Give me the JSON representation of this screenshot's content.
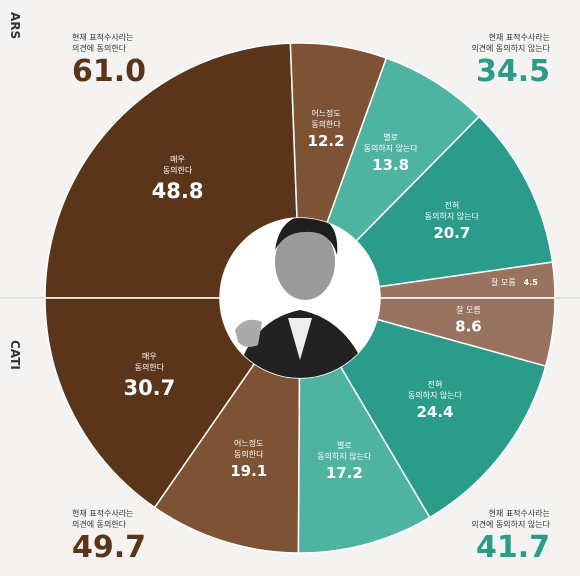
{
  "chart_data": [
    {
      "type": "donut",
      "title": "ARS",
      "half": "top",
      "categories": [
        "매우\n동의한다",
        "어느정도\n동의한다",
        "별로\n동의하지 않는다",
        "전혀\n동의하지 않는다",
        "잘 모름"
      ],
      "values": [
        48.8,
        12.2,
        13.8,
        20.7,
        4.5
      ],
      "colors": [
        "#5b3519",
        "#7e5234",
        "#4fb3a2",
        "#2b9c8a",
        "#9a7360"
      ],
      "summary": {
        "categories": [
          "현재 표적수사라는\n의견에 동의한다",
          "현재 표적수사라는\n의견에 동의하지 않는다"
        ],
        "values": [
          61.0,
          34.5
        ],
        "value_labels": [
          "61.0",
          "34.5"
        ],
        "colors": [
          "#5b3519",
          "#2b9c8a"
        ]
      }
    },
    {
      "type": "donut",
      "title": "CATI",
      "half": "bottom",
      "categories": [
        "매우\n동의한다",
        "어느정도\n동의한다",
        "별로\n동의하지 않는다",
        "전혀\n동의하지 않는다",
        "잘 모름"
      ],
      "values": [
        30.7,
        19.1,
        17.2,
        24.4,
        8.6
      ],
      "colors": [
        "#5b3519",
        "#7e5234",
        "#4fb3a2",
        "#2b9c8a",
        "#9a7360"
      ],
      "summary": {
        "categories": [
          "현재 표적수사라는\n의견에 동의한다",
          "현재 표적수사라는\n의견에 동의하지 않는다"
        ],
        "values": [
          49.7,
          41.7
        ],
        "value_labels": [
          "49.7",
          "41.7"
        ],
        "colors": [
          "#5b3519",
          "#2b9c8a"
        ]
      }
    }
  ]
}
